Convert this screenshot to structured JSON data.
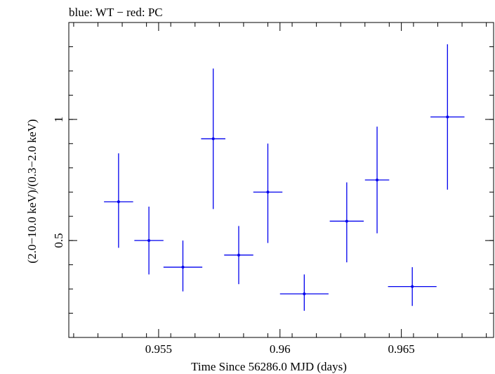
{
  "chart_data": {
    "type": "scatter",
    "title": "blue: WT − red: PC",
    "xlabel": "Time Since 56286.0 MJD (days)",
    "ylabel": "(2.0−10.0 keV)/(0.3−2.0 keV)",
    "xlim": [
      0.9513,
      0.9688
    ],
    "ylim": [
      0.1,
      1.4
    ],
    "x_ticks": [
      0.955,
      0.96,
      0.965
    ],
    "x_tick_labels": [
      "0.955",
      "0.96",
      "0.965"
    ],
    "y_ticks": [
      0.5,
      1.0
    ],
    "y_tick_labels": [
      "0.5",
      "1"
    ],
    "series": [
      {
        "name": "WT",
        "color": "#0000ee",
        "points": [
          {
            "x": 0.95335,
            "xerr": 0.0006,
            "y": 0.66,
            "ylo": 0.47,
            "yhi": 0.86
          },
          {
            "x": 0.9546,
            "xerr": 0.0006,
            "y": 0.5,
            "ylo": 0.36,
            "yhi": 0.64
          },
          {
            "x": 0.956,
            "xerr": 0.0008,
            "y": 0.39,
            "ylo": 0.29,
            "yhi": 0.5
          },
          {
            "x": 0.95725,
            "xerr": 0.0005,
            "y": 0.92,
            "ylo": 0.63,
            "yhi": 1.21
          },
          {
            "x": 0.9583,
            "xerr": 0.0006,
            "y": 0.44,
            "ylo": 0.32,
            "yhi": 0.56
          },
          {
            "x": 0.9595,
            "xerr": 0.0006,
            "y": 0.7,
            "ylo": 0.49,
            "yhi": 0.9
          },
          {
            "x": 0.961,
            "xerr": 0.001,
            "y": 0.28,
            "ylo": 0.21,
            "yhi": 0.36
          },
          {
            "x": 0.96275,
            "xerr": 0.0007,
            "y": 0.58,
            "ylo": 0.41,
            "yhi": 0.74
          },
          {
            "x": 0.964,
            "xerr": 0.0005,
            "y": 0.75,
            "ylo": 0.53,
            "yhi": 0.97
          },
          {
            "x": 0.96545,
            "xerr": 0.001,
            "y": 0.31,
            "ylo": 0.23,
            "yhi": 0.39
          },
          {
            "x": 0.9669,
            "xerr": 0.0007,
            "y": 1.01,
            "ylo": 0.71,
            "yhi": 1.31
          }
        ]
      }
    ]
  }
}
